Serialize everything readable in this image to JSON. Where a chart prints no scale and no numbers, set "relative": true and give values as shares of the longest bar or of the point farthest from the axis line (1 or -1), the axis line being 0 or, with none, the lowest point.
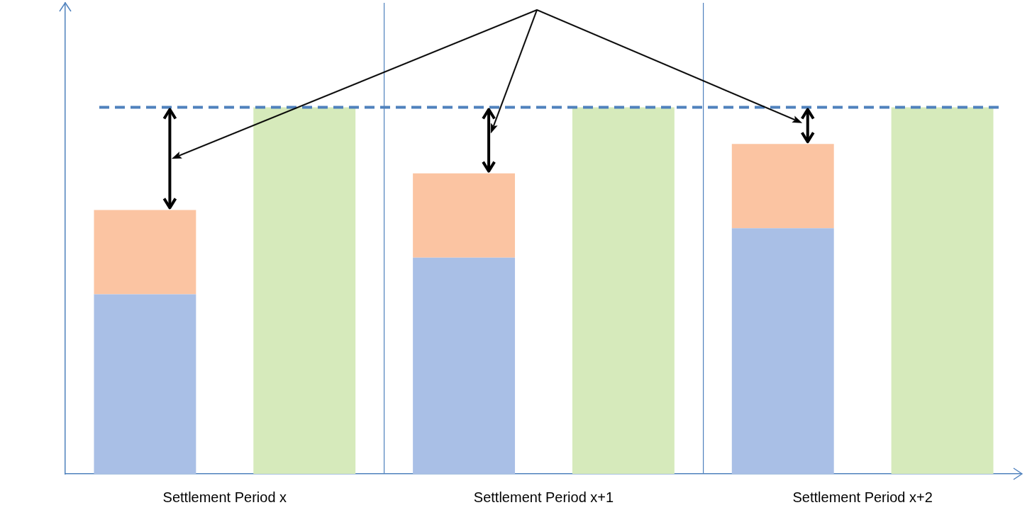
{
  "chart_data": {
    "type": "bar",
    "relative": true,
    "stacked": true,
    "categories": [
      "Settlement Period x",
      null,
      "Settlement Period x+1",
      null,
      "Settlement Period x+2",
      null
    ],
    "series": [
      {
        "color": "#a9bfe6",
        "values": [
          0.49,
          null,
          0.59,
          null,
          0.67,
          null
        ]
      },
      {
        "color": "#fbc4a2",
        "values": [
          0.23,
          null,
          0.23,
          null,
          0.23,
          null
        ]
      },
      {
        "color": "#d6eabb",
        "values": [
          null,
          1,
          null,
          1,
          null,
          1
        ]
      }
    ],
    "ref_lines": [
      {
        "axis": "y",
        "value": 1,
        "color": "#4f81bd",
        "line_style": "dashed"
      }
    ],
    "grid": "x",
    "legend": false
  }
}
